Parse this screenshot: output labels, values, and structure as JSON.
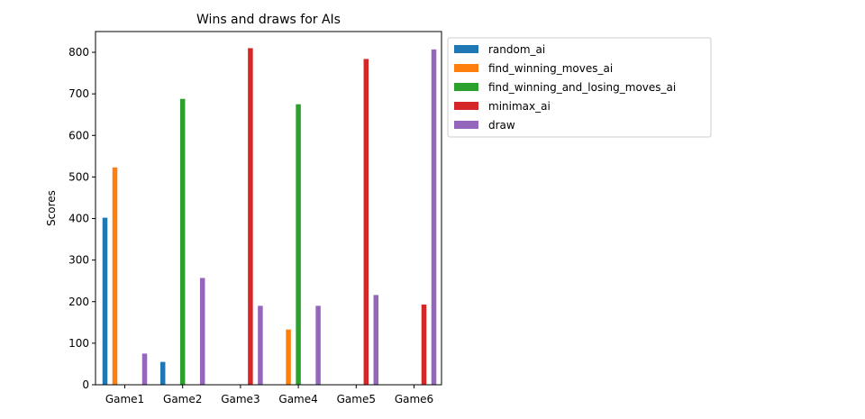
{
  "chart_data": {
    "type": "bar",
    "title": "Wins and draws for AIs",
    "xlabel": "",
    "ylabel": "Scores",
    "ylim": [
      0,
      850
    ],
    "yticks": [
      0,
      100,
      200,
      300,
      400,
      500,
      600,
      700,
      800
    ],
    "grid": false,
    "legend_position": "outside-right-top",
    "categories": [
      "Game1",
      "Game2",
      "Game3",
      "Game4",
      "Game5",
      "Game6"
    ],
    "series": [
      {
        "name": "random_ai",
        "color": "#1f77b4",
        "values": [
          402,
          55,
          0,
          0,
          0,
          0
        ]
      },
      {
        "name": "find_winning_moves_ai",
        "color": "#ff7f0e",
        "values": [
          523,
          0,
          0,
          133,
          0,
          0
        ]
      },
      {
        "name": "find_winning_and_losing_moves_ai",
        "color": "#2ca02c",
        "values": [
          0,
          688,
          0,
          675,
          0,
          0
        ]
      },
      {
        "name": "minimax_ai",
        "color": "#d62728",
        "values": [
          0,
          0,
          810,
          0,
          784,
          193
        ]
      },
      {
        "name": "draw",
        "color": "#9467bd",
        "values": [
          75,
          257,
          190,
          190,
          216,
          807
        ]
      }
    ]
  }
}
